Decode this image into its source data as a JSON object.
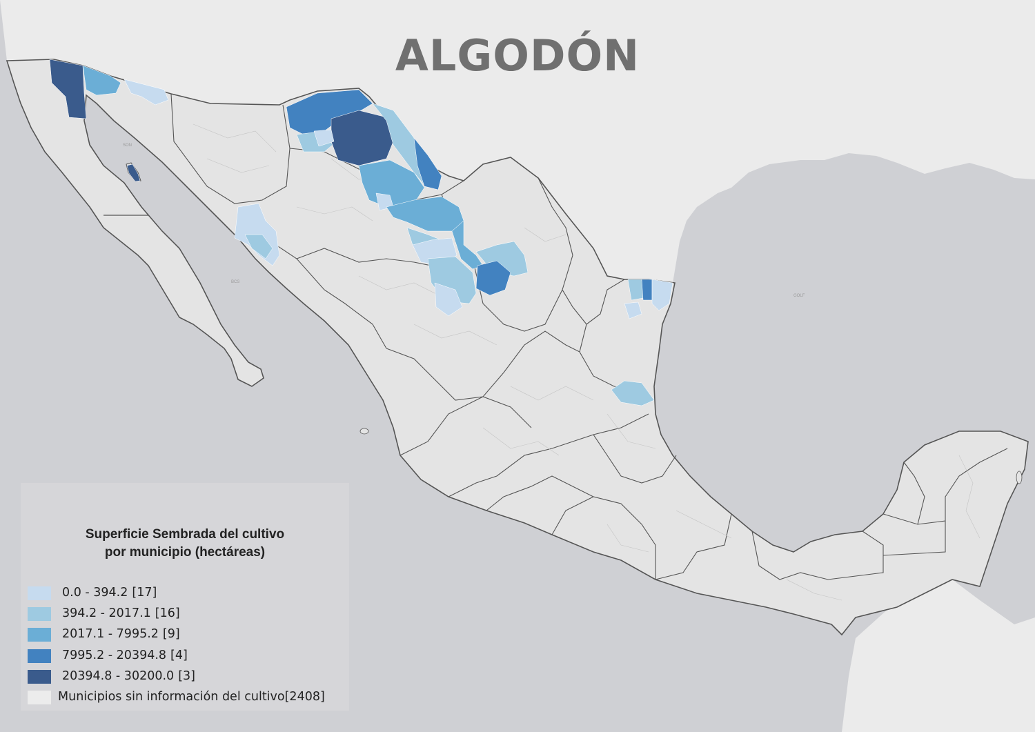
{
  "title": "ALGODÓN",
  "legend": {
    "title_line1": "Superficie Sembrada del cultivo",
    "title_line2": "por municipio (hectáreas)",
    "classes": [
      {
        "range": "0.0 - 394.2",
        "count": "[17]",
        "color": "#c6dbef"
      },
      {
        "range": "394.2 - 2017.1",
        "count": "[16]",
        "color": "#9ecae1"
      },
      {
        "range": "2017.1 - 7995.2",
        "count": "[9]",
        "color": "#6baed6"
      },
      {
        "range": "7995.2 - 20394.8",
        "count": "[4]",
        "color": "#4282c0"
      },
      {
        "range": "20394.8 - 30200.0",
        "count": "[3]",
        "color": "#3a5b8c"
      },
      {
        "range": "Municipios sin información del cultivo",
        "count": "[2408]",
        "color": "#ececec"
      }
    ]
  },
  "colors": {
    "ocean": "#cfd0d4",
    "foreign_land": "#ebebeb",
    "mexico_land": "#e4e4e4",
    "boundary": "#555555",
    "title": "#707070"
  }
}
